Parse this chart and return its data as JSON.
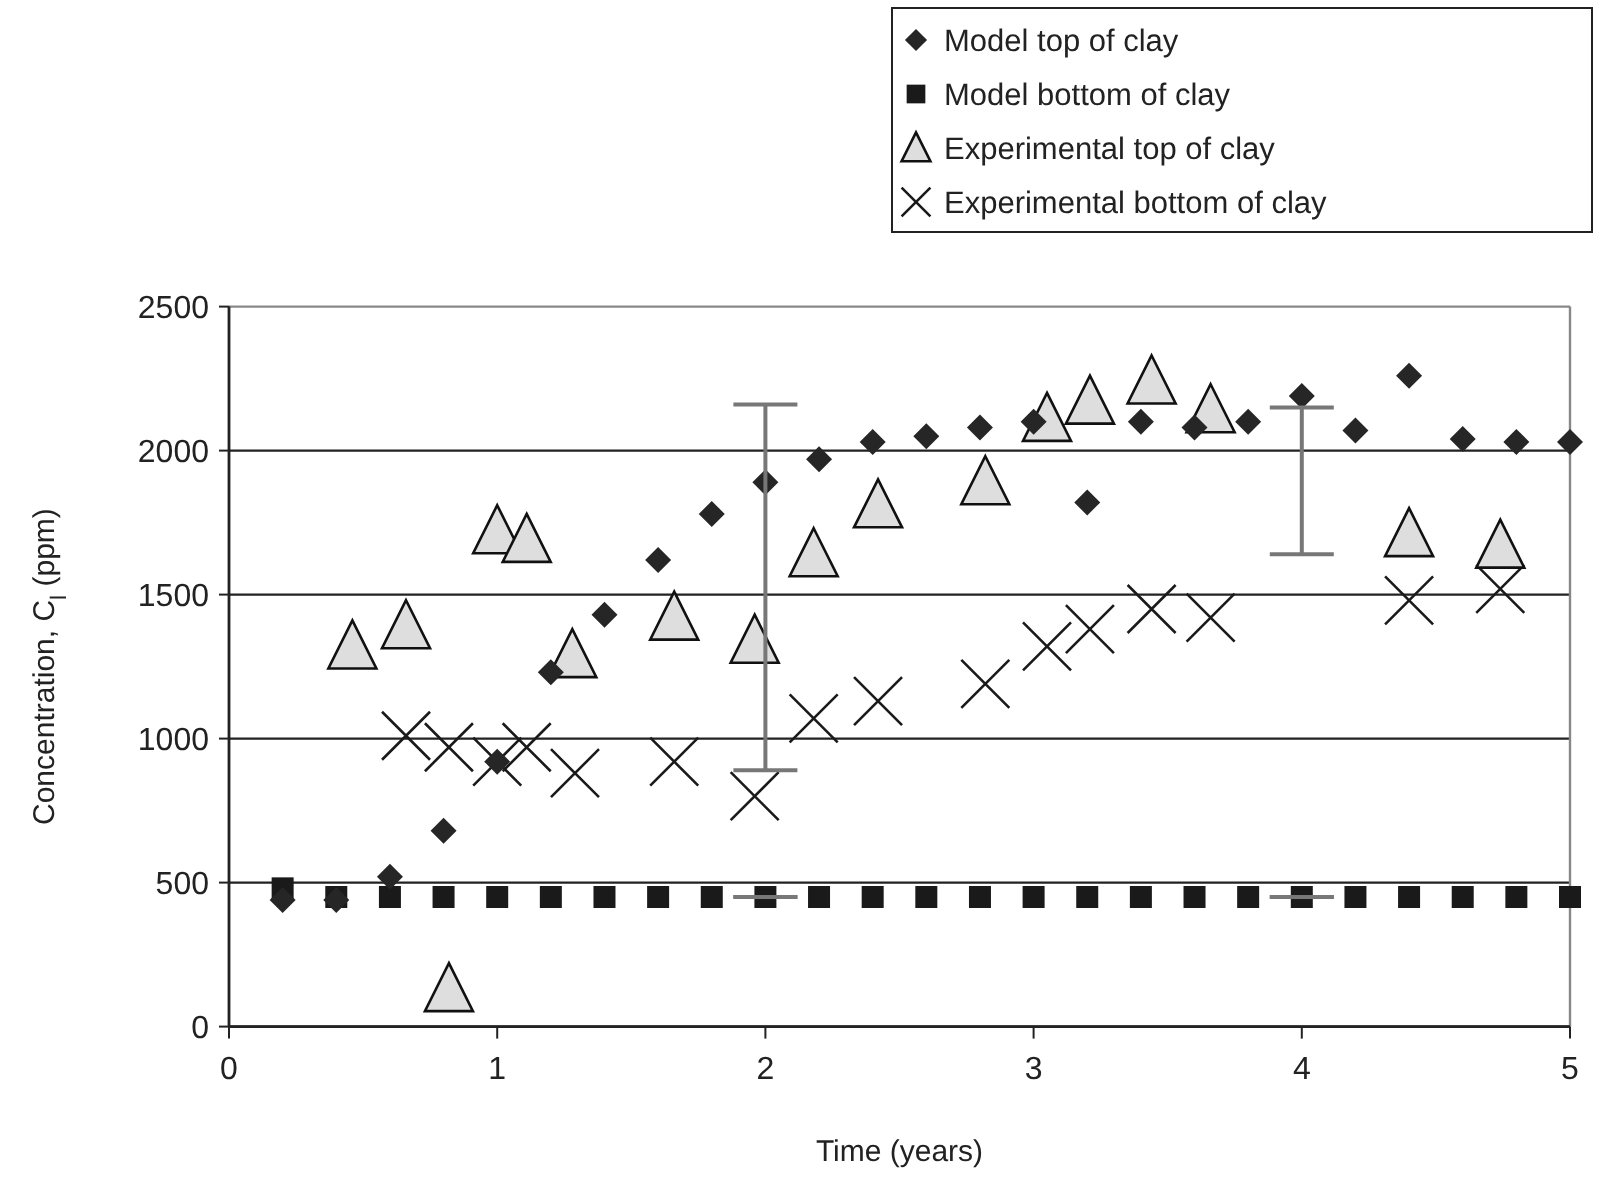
{
  "chart_data": {
    "type": "scatter",
    "xlabel": "Time (years)",
    "ylabel": "Concentration, C$_{l}$ (ppm)",
    "xlim": [
      0,
      5
    ],
    "ylim": [
      0,
      2500
    ],
    "xticks": [
      0,
      1,
      2,
      3,
      4,
      5
    ],
    "yticks": [
      0,
      500,
      1000,
      1500,
      2000,
      2500
    ],
    "grid": "y",
    "legend": "top right",
    "series": [
      {
        "name": "Model top of clay",
        "color": "#262626",
        "marker": "diamond",
        "x": [
          0.2,
          0.4,
          0.6,
          0.8,
          1.0,
          1.2,
          1.4,
          1.6,
          1.8,
          2.0,
          2.2,
          2.4,
          2.6,
          2.8,
          3.0,
          3.2,
          3.4,
          3.6,
          3.8,
          4.0,
          4.2,
          4.4,
          4.6,
          4.8,
          5.0
        ],
        "values": [
          440,
          440,
          520,
          680,
          920,
          1230,
          1430,
          1620,
          1780,
          1890,
          1970,
          2030,
          2050,
          2080,
          2100,
          1820,
          2100,
          2080,
          2100,
          2190,
          2070,
          2260,
          2040,
          2030,
          2030
        ],
        "errors": [
          null,
          null,
          null,
          null,
          null,
          null,
          null,
          null,
          null,
          [
            890,
            2160
          ],
          null,
          null,
          null,
          null,
          null,
          null,
          null,
          null,
          null,
          [
            1640,
            2150
          ],
          null,
          null,
          null,
          null,
          null
        ]
      },
      {
        "name": "Model bottom of clay",
        "color": "#1a1a1a",
        "marker": "square",
        "x": [
          0.2,
          0.4,
          0.6,
          0.8,
          1.0,
          1.2,
          1.4,
          1.6,
          1.8,
          2.0,
          2.2,
          2.4,
          2.6,
          2.8,
          3.0,
          3.2,
          3.4,
          3.6,
          3.8,
          4.0,
          4.2,
          4.4,
          4.6,
          4.8,
          5.0
        ],
        "values": [
          480,
          450,
          450,
          450,
          450,
          450,
          450,
          450,
          450,
          450,
          450,
          450,
          450,
          450,
          450,
          450,
          450,
          450,
          450,
          450,
          450,
          450,
          450,
          450,
          450
        ],
        "errors": [
          null,
          null,
          null,
          null,
          null,
          null,
          null,
          null,
          null,
          [
            450,
            450
          ],
          null,
          null,
          null,
          null,
          null,
          null,
          null,
          null,
          null,
          [
            450,
            450
          ],
          null,
          null,
          null,
          null,
          null
        ]
      },
      {
        "name": "Experimental top of clay",
        "color": "#dedede",
        "marker": "triangle",
        "x": [
          0.46,
          0.66,
          0.82,
          1.0,
          1.11,
          1.28,
          1.66,
          1.96,
          2.18,
          2.42,
          2.82,
          3.05,
          3.21,
          3.44,
          3.66,
          4.4,
          4.74
        ],
        "values": [
          1320,
          1390,
          130,
          1720,
          1690,
          1290,
          1420,
          1340,
          1640,
          1810,
          1890,
          2110,
          2170,
          2240,
          2140,
          1710,
          1670
        ]
      },
      {
        "name": "Experimental bottom of clay",
        "color": "#1a1a1a",
        "marker": "cross",
        "x": [
          0.66,
          0.82,
          1.0,
          1.11,
          1.29,
          1.66,
          1.96,
          2.18,
          2.42,
          2.82,
          3.05,
          3.21,
          3.44,
          3.66,
          4.4,
          4.74
        ],
        "values": [
          1010,
          970,
          920,
          970,
          880,
          920,
          800,
          1070,
          1130,
          1190,
          1320,
          1380,
          1450,
          1420,
          1480,
          1520
        ]
      }
    ]
  }
}
